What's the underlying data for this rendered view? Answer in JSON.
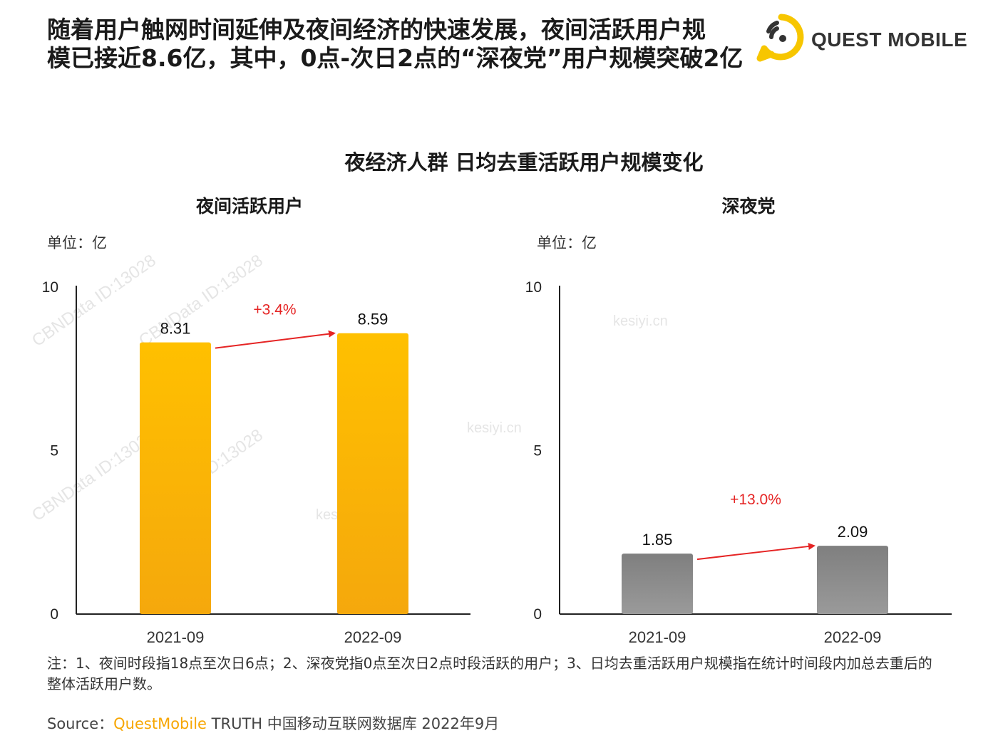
{
  "headline": {
    "line1": "随着用户触网时间延伸及夜间经济的快速发展，夜间活跃用户规",
    "line2": "模已接近8.6亿，其中，0点-次日2点的“深夜党”用户规模突破2亿"
  },
  "logo": {
    "text": "QUEST MOBILE",
    "icon": "questmobile-logo-icon",
    "accent": "#f7c600"
  },
  "main_title": "夜经济人群  日均去重活跃用户规模变化",
  "watermark": {
    "text": "CBNData ID:13028",
    "site": "kesiyi.cn"
  },
  "chart_data": [
    {
      "type": "bar",
      "title": "夜间活跃用户",
      "unit_label": "单位：亿",
      "categories": [
        "2021-09",
        "2022-09"
      ],
      "values": [
        8.31,
        8.59
      ],
      "value_labels": [
        "8.31",
        "8.59"
      ],
      "ylim": [
        0,
        10
      ],
      "yticks": [
        0,
        5,
        10
      ],
      "ytick_labels": [
        "0",
        "5",
        "10"
      ],
      "growth_label": "+3.4%",
      "bar_color": "#ffc000",
      "bar_color_bottom": "#f5a80c"
    },
    {
      "type": "bar",
      "title": "深夜党",
      "unit_label": "单位：亿",
      "categories": [
        "2021-09",
        "2022-09"
      ],
      "values": [
        1.85,
        2.09
      ],
      "value_labels": [
        "1.85",
        "2.09"
      ],
      "ylim": [
        0,
        10
      ],
      "yticks": [
        0,
        5,
        10
      ],
      "ytick_labels": [
        "0",
        "5",
        "10"
      ],
      "growth_label": "+13.0%",
      "bar_color": "#7f7f7f",
      "bar_color_bottom": "#9a9a9a"
    }
  ],
  "arrow_color": "#e52424",
  "note": "注：1、夜间时段指18点至次日6点；2、深夜党指0点至次日2点时段活跃的用户；3、日均去重活跃用户规模指在统计时间段内加总去重后的整体活跃用户数。",
  "source": {
    "prefix": "Source：",
    "brand": "QuestMobile",
    "rest": " TRUTH 中国移动互联网数据库 2022年9月"
  }
}
